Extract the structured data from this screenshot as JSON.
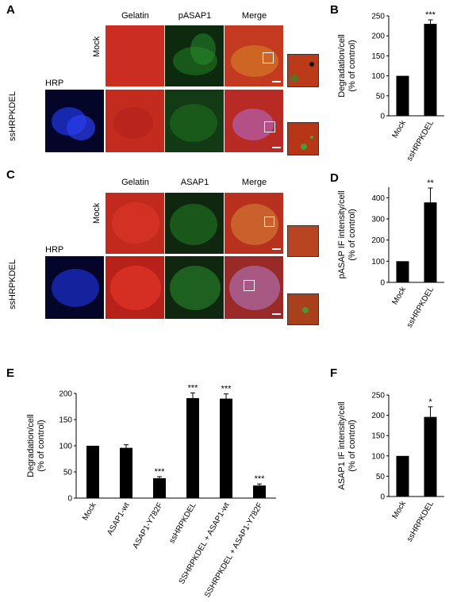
{
  "panels": {
    "A": {
      "label": "A",
      "col_headers": [
        "Gelatin",
        "pASAP1",
        "Merge"
      ],
      "row_labels": [
        "Mock",
        "ssHRPKDEL"
      ],
      "side_label": "HRP"
    },
    "C": {
      "label": "C",
      "col_headers": [
        "Gelatin",
        "ASAP1",
        "Merge"
      ],
      "row_labels": [
        "Mock",
        "ssHRPKDEL"
      ],
      "side_label": "HRP"
    }
  },
  "colors": {
    "gelatin_red": "#c8271f",
    "green_channel": "#1f7a22",
    "hrp_blue": "#1c2fd0",
    "bar": "#000000"
  },
  "chart_data": [
    {
      "id": "B",
      "label": "B",
      "type": "bar",
      "categories": [
        "Mock",
        "ssHRPKDEL"
      ],
      "values": [
        100,
        230
      ],
      "errors": [
        0,
        10
      ],
      "significance": [
        "",
        "***"
      ],
      "ylabel_lines": [
        "Degradation/cell",
        "(% of control)"
      ],
      "ylim": [
        0,
        250
      ],
      "yticks": [
        "0",
        "50",
        "100",
        "150",
        "200",
        "250"
      ],
      "grid": false
    },
    {
      "id": "D",
      "label": "D",
      "type": "bar",
      "categories": [
        "Mock",
        "ssHRPKDEL"
      ],
      "values": [
        100,
        378
      ],
      "errors": [
        0,
        68
      ],
      "significance": [
        "",
        "**"
      ],
      "ylabel_lines": [
        "pASAP IF intensity/cell",
        "(% of control)"
      ],
      "ylim": [
        0,
        450
      ],
      "yticks": [
        "0",
        "100",
        "200",
        "300",
        "400"
      ],
      "grid": false
    },
    {
      "id": "E",
      "label": "E",
      "type": "bar",
      "categories": [
        "Mock",
        "ASAP1-wt",
        "ASAP1-Y782F",
        "ssHRPKDEL",
        "SSHRPKDEL + ASAP1-wt",
        "SSHRPKDEL + ASAP1-Y782F"
      ],
      "values": [
        100,
        96,
        38,
        191,
        190,
        24
      ],
      "errors": [
        0,
        6,
        3,
        10,
        9,
        3
      ],
      "significance": [
        "",
        "",
        "***",
        "***",
        "***",
        "***"
      ],
      "ylabel_lines": [
        "Degradation/cell",
        "(% of control)"
      ],
      "ylim": [
        0,
        200
      ],
      "yticks": [
        "0",
        "50",
        "100",
        "150",
        "200"
      ],
      "grid": false
    },
    {
      "id": "F",
      "label": "F",
      "type": "bar",
      "categories": [
        "Mock",
        "ssHRPKDEL"
      ],
      "values": [
        100,
        196
      ],
      "errors": [
        0,
        25
      ],
      "significance": [
        "",
        "*"
      ],
      "ylabel_lines": [
        "ASAP1 IF intensity/cell",
        "(% of control)"
      ],
      "ylim": [
        0,
        250
      ],
      "yticks": [
        "0",
        "50",
        "100",
        "150",
        "200",
        "250"
      ],
      "grid": false
    }
  ]
}
